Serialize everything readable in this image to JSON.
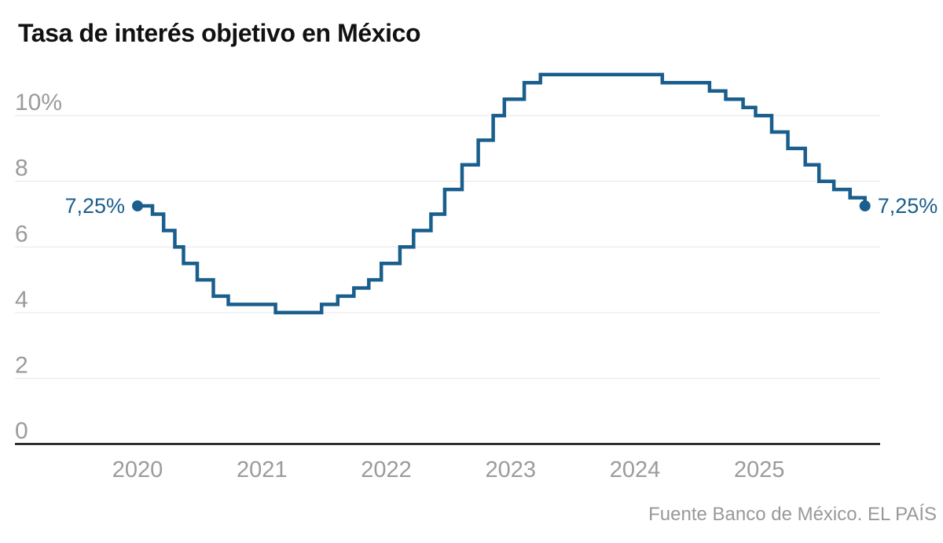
{
  "page": {
    "title": "Tasa de interés objetivo en México",
    "source": "Fuente Banco de México. EL PAÍS"
  },
  "colors": {
    "background": "#ffffff",
    "title_text": "#111111",
    "line": "#195e8d",
    "value_label": "#195e8d",
    "grid": "#e6e6e6",
    "axis_zero": "#000000",
    "tick_label": "#9b9b9b",
    "source_text": "#999999"
  },
  "chart_data": {
    "type": "line",
    "step": "after",
    "title": "Tasa de interés objetivo en México",
    "source": "Fuente Banco de México. EL PAÍS",
    "xlabel": "",
    "ylabel": "",
    "unit": "%",
    "grid": "horizontal",
    "legend_position": "none",
    "xlim": [
      2019.01,
      2025.97
    ],
    "ylim": [
      0,
      11.6
    ],
    "x_ticks": [
      {
        "v": 2020,
        "label": "2020"
      },
      {
        "v": 2021,
        "label": "2021"
      },
      {
        "v": 2022,
        "label": "2022"
      },
      {
        "v": 2023,
        "label": "2023"
      },
      {
        "v": 2024,
        "label": "2024"
      },
      {
        "v": 2025,
        "label": "2025"
      }
    ],
    "y_ticks": [
      {
        "v": 0,
        "label": "0"
      },
      {
        "v": 2,
        "label": "2"
      },
      {
        "v": 4,
        "label": "4"
      },
      {
        "v": 6,
        "label": "6"
      },
      {
        "v": 8,
        "label": "8"
      },
      {
        "v": 10,
        "label": "10%"
      }
    ],
    "start_point": {
      "x": 2020.0,
      "y": 7.25,
      "label": "7,25%"
    },
    "end_point": {
      "x": 2025.85,
      "y": 7.25,
      "label": "7,25%"
    },
    "series": [
      {
        "name": "Tasa de interés objetivo",
        "color": "#195e8d",
        "points": [
          [
            2020.0,
            7.25
          ],
          [
            2020.12,
            7.0
          ],
          [
            2020.21,
            6.5
          ],
          [
            2020.3,
            6.0
          ],
          [
            2020.37,
            5.5
          ],
          [
            2020.48,
            5.0
          ],
          [
            2020.61,
            4.5
          ],
          [
            2020.73,
            4.25
          ],
          [
            2021.11,
            4.0
          ],
          [
            2021.48,
            4.25
          ],
          [
            2021.61,
            4.5
          ],
          [
            2021.74,
            4.75
          ],
          [
            2021.86,
            5.0
          ],
          [
            2021.96,
            5.5
          ],
          [
            2022.11,
            6.0
          ],
          [
            2022.22,
            6.5
          ],
          [
            2022.36,
            7.0
          ],
          [
            2022.47,
            7.75
          ],
          [
            2022.61,
            8.5
          ],
          [
            2022.74,
            9.25
          ],
          [
            2022.86,
            10.0
          ],
          [
            2022.95,
            10.5
          ],
          [
            2023.11,
            11.0
          ],
          [
            2023.24,
            11.25
          ],
          [
            2024.22,
            11.0
          ],
          [
            2024.6,
            10.75
          ],
          [
            2024.73,
            10.5
          ],
          [
            2024.87,
            10.25
          ],
          [
            2024.97,
            10.0
          ],
          [
            2025.1,
            9.5
          ],
          [
            2025.23,
            9.0
          ],
          [
            2025.37,
            8.5
          ],
          [
            2025.48,
            8.0
          ],
          [
            2025.6,
            7.75
          ],
          [
            2025.73,
            7.5
          ],
          [
            2025.85,
            7.25
          ]
        ]
      }
    ]
  }
}
